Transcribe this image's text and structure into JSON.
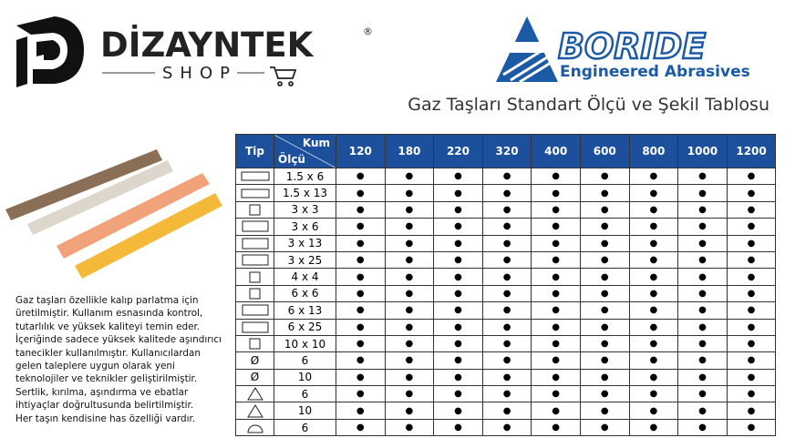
{
  "header": {
    "brand": "DİZAYNTEK",
    "registered": "®",
    "brand_sub": "SHOP",
    "partner": "BORIDE",
    "partner_sub": "Engineered Abrasives"
  },
  "title": "Gaz Taşları Standart Ölçü ve Şekil Tablosu",
  "description": [
    "Gaz taşları özellikle kalıp parlatma için",
    "üretilmiştir. Kullanım esnasında kontrol,",
    "tutarlılık ve yüksek kaliteyi temin eder.",
    "İçeriğinde sadece yüksek kalitede aşındırıcı",
    "tanecikler kullanılmıştır. Kullanıcılardan",
    "gelen taleplere uygun olarak yeni",
    "teknolojiler ve teknikler geliştirilmiştir.",
    "Sertlik, kırılma, aşındırma ve ebatlar",
    "ihtiyaçlar doğrultusunda belirtilmiştir.",
    "Her taşın kendisine has özelliği vardır."
  ],
  "table": {
    "tip_header": "Tip",
    "kum_header": "Kum",
    "olcu_header": "Ölçü",
    "grits": [
      "120",
      "180",
      "220",
      "320",
      "400",
      "600",
      "800",
      "1000",
      "1200"
    ],
    "rows": [
      {
        "size": "1.5 x 6",
        "marks": [
          "●",
          "●",
          "●",
          "●",
          "●",
          "●",
          "●",
          "●",
          "●"
        ]
      },
      {
        "size": "1.5 x 13",
        "marks": [
          "●",
          "●",
          "●",
          "●",
          "●",
          "●",
          "●",
          "●",
          "●"
        ]
      },
      {
        "size": "3 x 3",
        "marks": [
          "●",
          "●",
          "●",
          "●",
          "●",
          "●",
          "●",
          "●",
          "●"
        ]
      },
      {
        "size": "3 x 6",
        "marks": [
          "●",
          "●",
          "●",
          "●",
          "●",
          "●",
          "●",
          "●",
          "●"
        ]
      },
      {
        "size": "3 x 13",
        "marks": [
          "●",
          "●",
          "●",
          "●",
          "●",
          "●",
          "●",
          "●",
          "●"
        ]
      },
      {
        "size": "3 x 25",
        "marks": [
          "●",
          "●",
          "●",
          "●",
          "●",
          "●",
          "●",
          "●",
          "●"
        ]
      },
      {
        "size": "4 x 4",
        "marks": [
          "●",
          "●",
          "●",
          "●",
          "●",
          "●",
          "●",
          "●",
          "●"
        ]
      },
      {
        "size": "6 x 6",
        "marks": [
          "●",
          "●",
          "●",
          "●",
          "●",
          "●",
          "●",
          "●",
          "●"
        ]
      },
      {
        "size": "6 x 13",
        "marks": [
          "●",
          "●",
          "●",
          "●",
          "●",
          "●",
          "●",
          "●",
          "●"
        ]
      },
      {
        "size": "6 x 25",
        "marks": [
          "●",
          "●",
          "●",
          "●",
          "●",
          "●",
          "●",
          "●",
          "●"
        ]
      },
      {
        "size": "10 x 10",
        "marks": [
          "●",
          "●",
          "●",
          "●",
          "●",
          "●",
          "●",
          "●",
          "●"
        ]
      },
      {
        "tip": "Ø",
        "size": "6",
        "marks": [
          "●",
          "●",
          "●",
          "●",
          "●",
          "●",
          "●",
          "●",
          "●"
        ]
      },
      {
        "tip": "Ø",
        "size": "10",
        "marks": [
          "●",
          "●",
          "●",
          "●",
          "●",
          "●",
          "●",
          "●",
          "●"
        ]
      },
      {
        "size": "6",
        "marks": [
          "●",
          "●",
          "●",
          "●",
          "●",
          "●",
          "●",
          "●",
          "●"
        ]
      },
      {
        "size": "10",
        "marks": [
          "●",
          "●",
          "●",
          "●",
          "●",
          "●",
          "●",
          "●",
          "●"
        ]
      },
      {
        "size": "6",
        "marks": [
          "●",
          "●",
          "●",
          "●",
          "●",
          "●",
          "●",
          "●",
          "●"
        ]
      }
    ]
  }
}
